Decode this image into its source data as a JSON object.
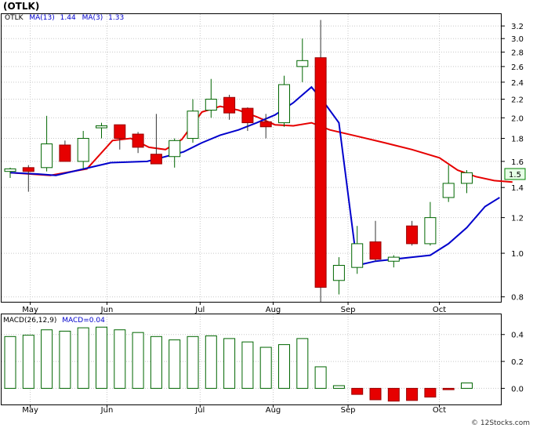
{
  "chart_data": [
    {
      "type": "candlestick",
      "title": "(OTLK)",
      "legend": {
        "symbol": "OTLK",
        "ma13_label": "MA(13)",
        "ma13_value": "1.44",
        "ma3_label": "MA(3)",
        "ma3_value": "1.33"
      },
      "last_price_label": "1.5",
      "y_scale": "log",
      "ylim": [
        0.78,
        3.4
      ],
      "yticks": [
        {
          "v": 0.8,
          "t": "0.8"
        },
        {
          "v": 1.0,
          "t": "1.0"
        },
        {
          "v": 1.2,
          "t": "1.2"
        },
        {
          "v": 1.4,
          "t": "1.4"
        },
        {
          "v": 1.6,
          "t": "1.6"
        },
        {
          "v": 1.8,
          "t": "1.8"
        },
        {
          "v": 2.0,
          "t": "2.0"
        },
        {
          "v": 2.2,
          "t": "2.2"
        },
        {
          "v": 2.4,
          "t": "2.4"
        },
        {
          "v": 2.6,
          "t": "2.6"
        },
        {
          "v": 2.8,
          "t": "2.8"
        },
        {
          "v": 3.0,
          "t": "3.0"
        },
        {
          "v": 3.2,
          "t": "3.2"
        }
      ],
      "months": [
        {
          "label": "May",
          "i": 1.1
        },
        {
          "label": "Jun",
          "i": 5.3
        },
        {
          "label": "Jul",
          "i": 10.4
        },
        {
          "label": "Aug",
          "i": 14.4
        },
        {
          "label": "Sep",
          "i": 18.5
        },
        {
          "label": "Oct",
          "i": 23.5
        }
      ],
      "candles": [
        {
          "o": 1.52,
          "h": 1.55,
          "l": 1.47,
          "c": 1.54
        },
        {
          "o": 1.55,
          "h": 1.57,
          "l": 1.37,
          "c": 1.52
        },
        {
          "o": 1.55,
          "h": 2.02,
          "l": 1.52,
          "c": 1.75
        },
        {
          "o": 1.74,
          "h": 1.78,
          "l": 1.6,
          "c": 1.6
        },
        {
          "o": 1.6,
          "h": 1.87,
          "l": 1.54,
          "c": 1.8
        },
        {
          "o": 1.9,
          "h": 1.95,
          "l": 1.8,
          "c": 1.92
        },
        {
          "o": 1.93,
          "h": 1.93,
          "l": 1.7,
          "c": 1.8
        },
        {
          "o": 1.84,
          "h": 1.86,
          "l": 1.67,
          "c": 1.72
        },
        {
          "o": 1.66,
          "h": 2.04,
          "l": 1.6,
          "c": 1.58
        },
        {
          "o": 1.64,
          "h": 1.8,
          "l": 1.55,
          "c": 1.78
        },
        {
          "o": 1.8,
          "h": 2.2,
          "l": 1.76,
          "c": 2.07
        },
        {
          "o": 2.08,
          "h": 2.44,
          "l": 2.0,
          "c": 2.2
        },
        {
          "o": 2.22,
          "h": 2.25,
          "l": 1.98,
          "c": 2.05
        },
        {
          "o": 2.1,
          "h": 2.11,
          "l": 1.87,
          "c": 1.95
        },
        {
          "o": 1.96,
          "h": 2.04,
          "l": 1.8,
          "c": 1.91
        },
        {
          "o": 1.95,
          "h": 2.48,
          "l": 1.91,
          "c": 2.37
        },
        {
          "o": 2.6,
          "h": 3.0,
          "l": 2.4,
          "c": 2.68
        },
        {
          "o": 2.72,
          "h": 3.3,
          "l": 0.78,
          "c": 0.84
        },
        {
          "o": 0.87,
          "h": 0.98,
          "l": 0.81,
          "c": 0.94
        },
        {
          "o": 0.93,
          "h": 1.15,
          "l": 0.9,
          "c": 1.05
        },
        {
          "o": 1.06,
          "h": 1.18,
          "l": 0.96,
          "c": 0.97
        },
        {
          "o": 0.96,
          "h": 0.99,
          "l": 0.93,
          "c": 0.98
        },
        {
          "o": 1.15,
          "h": 1.18,
          "l": 1.04,
          "c": 1.05
        },
        {
          "o": 1.05,
          "h": 1.3,
          "l": 1.04,
          "c": 1.2
        },
        {
          "o": 1.33,
          "h": 1.57,
          "l": 1.3,
          "c": 1.43
        },
        {
          "o": 1.43,
          "h": 1.53,
          "l": 1.36,
          "c": 1.51
        }
      ],
      "series": [
        {
          "name": "MA(13)",
          "color": "#e60000",
          "points": [
            [
              0,
              1.51
            ],
            [
              2.2,
              1.49
            ],
            [
              4.2,
              1.54
            ],
            [
              5.6,
              1.78
            ],
            [
              6.6,
              1.8
            ],
            [
              7.6,
              1.72
            ],
            [
              8.5,
              1.7
            ],
            [
              9.4,
              1.79
            ],
            [
              10.5,
              2.06
            ],
            [
              11.5,
              2.12
            ],
            [
              12.5,
              2.08
            ],
            [
              13.5,
              2.01
            ],
            [
              14.5,
              1.93
            ],
            [
              15.5,
              1.92
            ],
            [
              16.5,
              1.95
            ],
            [
              17.5,
              1.88
            ],
            [
              19.0,
              1.82
            ],
            [
              20.5,
              1.76
            ],
            [
              22.0,
              1.7
            ],
            [
              23.5,
              1.63
            ],
            [
              24.5,
              1.53
            ],
            [
              25.5,
              1.48
            ],
            [
              26.5,
              1.45
            ],
            [
              27.5,
              1.44
            ]
          ]
        },
        {
          "name": "MA(3)",
          "color": "#0000cc",
          "points": [
            [
              0,
              1.51
            ],
            [
              1.5,
              1.5
            ],
            [
              2.5,
              1.49
            ],
            [
              5.5,
              1.59
            ],
            [
              7.5,
              1.6
            ],
            [
              9.5,
              1.68
            ],
            [
              10.5,
              1.76
            ],
            [
              11.5,
              1.83
            ],
            [
              12.5,
              1.88
            ],
            [
              13.5,
              1.95
            ],
            [
              14.5,
              2.03
            ],
            [
              15.5,
              2.16
            ],
            [
              16.5,
              2.34
            ],
            [
              17.2,
              2.16
            ],
            [
              18.0,
              1.95
            ],
            [
              19.0,
              0.94
            ],
            [
              20.0,
              0.96
            ],
            [
              21.0,
              0.97
            ],
            [
              22.0,
              0.98
            ],
            [
              23.0,
              0.99
            ],
            [
              24.0,
              1.05
            ],
            [
              25.0,
              1.14
            ],
            [
              26.0,
              1.27
            ],
            [
              26.8,
              1.33
            ]
          ]
        }
      ]
    },
    {
      "type": "bar",
      "legend": {
        "label": "MACD(26,12,9)",
        "value_label": "MACD=0.04"
      },
      "ylim": [
        -0.12,
        0.55
      ],
      "yticks": [
        {
          "v": 0.4,
          "t": "0.4"
        },
        {
          "v": 0.2,
          "t": "0.2"
        },
        {
          "v": 0.0,
          "t": "0.0"
        }
      ],
      "values": [
        0.385,
        0.395,
        0.435,
        0.425,
        0.45,
        0.455,
        0.435,
        0.415,
        0.385,
        0.36,
        0.385,
        0.39,
        0.37,
        0.345,
        0.305,
        0.325,
        0.37,
        0.16,
        0.02,
        -0.045,
        -0.085,
        -0.095,
        -0.09,
        -0.065,
        -0.01,
        0.04
      ]
    }
  ],
  "footer": {
    "text": "© 12Stocks.com"
  }
}
